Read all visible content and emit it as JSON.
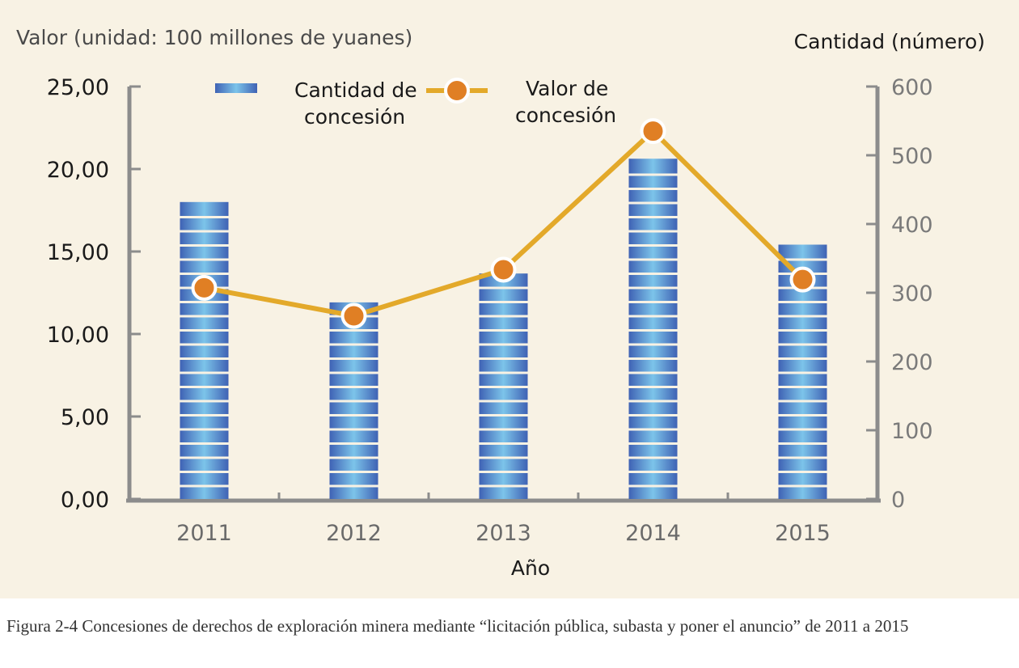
{
  "chart_data": {
    "type": "bar",
    "categories": [
      "2011",
      "2012",
      "2013",
      "2014",
      "2015"
    ],
    "series": [
      {
        "name": "Cantidad de concesión",
        "kind": "bar",
        "axis": "right",
        "color": "#3f7fc9",
        "values": [
          432,
          286,
          328,
          495,
          370
        ]
      },
      {
        "name": "Valor de concesión",
        "kind": "line",
        "axis": "left",
        "color": "#e3a92a",
        "marker_color": "#e07f24",
        "values": [
          12.8,
          11.1,
          13.9,
          22.3,
          13.3
        ]
      }
    ],
    "xlabel": "Año",
    "ylabel_left": "Valor (unidad: 100 millones de yuanes)",
    "ylabel_right": "Cantidad (número)",
    "ylim_left": [
      0,
      25
    ],
    "ylim_right": [
      0,
      600
    ],
    "left_ticks": [
      "0,00",
      "5,00",
      "10,00",
      "15,00",
      "20,00",
      "25,00"
    ],
    "right_ticks": [
      "0",
      "100",
      "200",
      "300",
      "400",
      "500",
      "600"
    ],
    "legend": [
      {
        "line1": "Cantidad de",
        "line2": "concesión"
      },
      {
        "line1": "Valor de",
        "line2": "concesión"
      }
    ],
    "legend_position": "top",
    "grid": false
  },
  "caption": "Figura 2-4 Concesiones de derechos de exploración minera mediante “licitación pública, subasta y poner el anuncio” de 2011 a 2015"
}
